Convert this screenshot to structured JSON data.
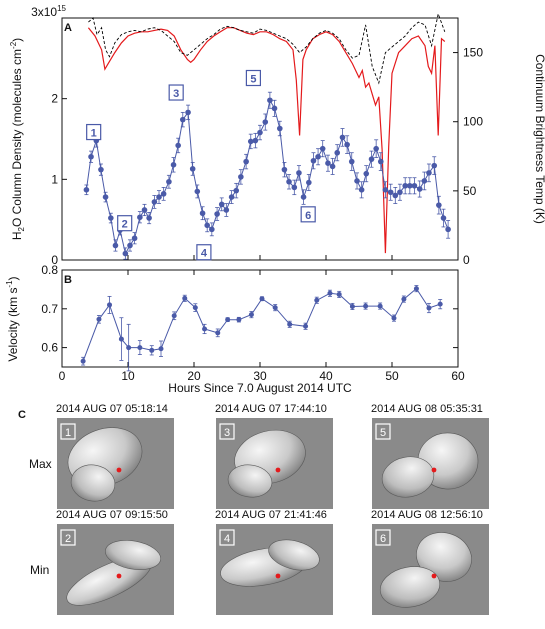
{
  "chart_data": [
    {
      "type": "line",
      "panel_label": "A",
      "xlim": [
        0,
        60
      ],
      "ylim_left": [
        0,
        3
      ],
      "left_ticks": [
        "0",
        "1",
        "2",
        "3x10"
      ],
      "left_tick_exp": "15",
      "ylabel_left": "H",
      "ylabel_left_sub": "2",
      "ylabel_left_rest": "O Column Density (molecules cm",
      "ylabel_left_sup": "-2",
      "ylabel_left_end": ")",
      "ylim_right": [
        0,
        175
      ],
      "right_ticks": [
        "0",
        "50",
        "100",
        "150"
      ],
      "ylabel_right": "Continuum Brightness Temp (K)",
      "series": [
        {
          "role": "water column density",
          "color": "#4a5aa8",
          "x": [
            3.7,
            4.4,
            5.2,
            5.9,
            6.6,
            7.4,
            8.1,
            8.8,
            9.6,
            10.3,
            11.0,
            11.8,
            12.5,
            13.2,
            14.0,
            14.7,
            15.4,
            16.2,
            16.9,
            17.6,
            18.3,
            19.1,
            19.8,
            20.5,
            21.3,
            22.0,
            22.7,
            23.5,
            24.2,
            24.9,
            25.7,
            26.4,
            27.1,
            27.9,
            28.6,
            29.3,
            30.0,
            30.8,
            31.5,
            32.2,
            33.0,
            33.7,
            34.4,
            35.2,
            35.9,
            36.6,
            37.4,
            38.1,
            38.8,
            39.5,
            40.3,
            41.0,
            41.7,
            42.5,
            43.2,
            43.9,
            44.7,
            45.4,
            46.1,
            46.9,
            47.6,
            48.3,
            49.0,
            49.8,
            50.5,
            51.2,
            52.0,
            52.7,
            53.4,
            54.2,
            54.9,
            55.6,
            56.4,
            57.1,
            57.8,
            58.5
          ],
          "y": [
            0.87,
            1.28,
            1.48,
            1.12,
            0.78,
            0.52,
            0.18,
            0.37,
            0.08,
            0.18,
            0.27,
            0.53,
            0.62,
            0.52,
            0.72,
            0.78,
            0.82,
            0.97,
            1.18,
            1.42,
            1.74,
            1.83,
            1.13,
            0.85,
            0.58,
            0.43,
            0.38,
            0.57,
            0.69,
            0.62,
            0.78,
            0.86,
            1.03,
            1.22,
            1.47,
            1.48,
            1.58,
            1.71,
            1.98,
            1.88,
            1.63,
            1.12,
            0.97,
            0.9,
            1.08,
            0.78,
            0.96,
            1.23,
            1.28,
            1.38,
            1.2,
            1.16,
            1.33,
            1.52,
            1.43,
            1.22,
            0.98,
            0.87,
            1.07,
            1.25,
            1.38,
            1.22,
            0.87,
            0.84,
            0.8,
            0.84,
            0.92,
            0.92,
            0.92,
            0.88,
            0.98,
            1.08,
            1.17,
            0.68,
            0.52,
            0.38
          ],
          "err": [
            0.06,
            0.07,
            0.08,
            0.07,
            0.06,
            0.06,
            0.07,
            0.06,
            0.07,
            0.07,
            0.07,
            0.07,
            0.07,
            0.07,
            0.08,
            0.08,
            0.08,
            0.08,
            0.09,
            0.09,
            0.09,
            0.09,
            0.08,
            0.08,
            0.08,
            0.08,
            0.08,
            0.08,
            0.08,
            0.08,
            0.08,
            0.09,
            0.09,
            0.09,
            0.09,
            0.09,
            0.09,
            0.1,
            0.1,
            0.1,
            0.09,
            0.09,
            0.09,
            0.09,
            0.09,
            0.09,
            0.1,
            0.1,
            0.1,
            0.1,
            0.1,
            0.1,
            0.1,
            0.11,
            0.11,
            0.11,
            0.1,
            0.1,
            0.1,
            0.1,
            0.11,
            0.11,
            0.1,
            0.1,
            0.1,
            0.1,
            0.1,
            0.1,
            0.1,
            0.1,
            0.11,
            0.11,
            0.11,
            0.11,
            0.11,
            0.11
          ]
        },
        {
          "role": "continuum brightness temperature",
          "color": "#e41a1c",
          "x": [
            4,
            5,
            6,
            6.5,
            7,
            8,
            9,
            10,
            11,
            12,
            13,
            14,
            15,
            16,
            17,
            18,
            19,
            19.5,
            20,
            21,
            22,
            23,
            24,
            25,
            26,
            27,
            28,
            29,
            30,
            31,
            32,
            33,
            34,
            35,
            35.5,
            36,
            36.5,
            37,
            38,
            39,
            40,
            41,
            42,
            43,
            44,
            45,
            45.5,
            46,
            46.5,
            47,
            47.5,
            48,
            48.5,
            49,
            49.5,
            50,
            51,
            52,
            53,
            54,
            55,
            55.5,
            56,
            56.5,
            57,
            57.5,
            58
          ],
          "y": [
            168,
            162,
            152,
            138,
            142,
            150,
            157,
            162,
            164,
            165,
            165,
            166,
            167,
            166,
            162,
            152,
            145,
            143,
            145,
            152,
            158,
            162,
            165,
            168,
            168,
            166,
            164,
            163,
            165,
            165,
            163,
            160,
            158,
            152,
            130,
            90,
            145,
            152,
            160,
            163,
            165,
            163,
            158,
            150,
            142,
            132,
            137,
            125,
            128,
            120,
            112,
            118,
            80,
            5,
            82,
            135,
            150,
            155,
            160,
            162,
            155,
            140,
            135,
            155,
            90,
            160,
            158
          ]
        },
        {
          "role": "continuum brightness temperature (model)",
          "color": "#000000",
          "x": [
            4,
            4.7,
            5.3,
            6,
            6.6,
            7.2,
            8,
            9,
            10,
            11,
            12,
            13,
            14,
            15,
            16,
            17,
            18,
            19,
            20,
            21,
            22,
            23,
            24,
            25,
            26,
            27,
            28,
            29,
            30,
            31,
            32,
            33,
            34,
            35,
            36,
            37,
            38,
            39,
            40,
            41,
            42,
            43,
            44,
            45,
            46,
            47,
            48,
            49,
            50,
            51,
            52,
            53,
            54,
            55,
            56,
            57,
            58
          ],
          "y": [
            172,
            175,
            163,
            168,
            152,
            147,
            157,
            163,
            165,
            166,
            165,
            167,
            168,
            166,
            162,
            158,
            150,
            148,
            152,
            156,
            160,
            163,
            167,
            169,
            168,
            166,
            165,
            164,
            167,
            166,
            164,
            162,
            160,
            156,
            150,
            154,
            160,
            164,
            166,
            164,
            160,
            152,
            146,
            148,
            170,
            140,
            128,
            150,
            154,
            158,
            162,
            168,
            172,
            170,
            155,
            178,
            165
          ]
        }
      ],
      "annotations": [
        {
          "label": "1",
          "x": 4.8,
          "y": 1.58
        },
        {
          "label": "2",
          "x": 9.5,
          "y": 0.45
        },
        {
          "label": "3",
          "x": 17.3,
          "y": 2.07
        },
        {
          "label": "4",
          "x": 21.5,
          "y": 0.09
        },
        {
          "label": "5",
          "x": 29.0,
          "y": 2.25
        },
        {
          "label": "6",
          "x": 37.3,
          "y": 0.56
        }
      ]
    },
    {
      "type": "line",
      "panel_label": "B",
      "xlim": [
        0,
        60
      ],
      "x_ticks": [
        "0",
        "10",
        "20",
        "30",
        "40",
        "50",
        "60"
      ],
      "ylim": [
        0.55,
        0.8
      ],
      "y_ticks": [
        "0.6",
        "0.7",
        "0.8"
      ],
      "xlabel": "Hours Since 7.0 August 2014 UTC",
      "ylabel": "Velocity (km s",
      "ylabel_sup": "-1",
      "ylabel_end": ")",
      "series": [
        {
          "role": "velocity",
          "color": "#4a5aa8",
          "x": [
            3.2,
            5.6,
            7.2,
            9.0,
            10.1,
            11.8,
            13.6,
            15.0,
            17.0,
            18.6,
            20.2,
            21.6,
            23.6,
            25.1,
            26.8,
            28.7,
            30.3,
            32.3,
            34.5,
            36.9,
            38.6,
            40.6,
            42.0,
            44.0,
            46.0,
            48.2,
            50.3,
            51.8,
            53.7,
            55.6,
            57.3
          ],
          "y": [
            0.565,
            0.673,
            0.71,
            0.622,
            0.6,
            0.6,
            0.593,
            0.597,
            0.682,
            0.727,
            0.703,
            0.648,
            0.638,
            0.672,
            0.672,
            0.685,
            0.726,
            0.703,
            0.66,
            0.655,
            0.722,
            0.74,
            0.737,
            0.706,
            0.707,
            0.707,
            0.676,
            0.725,
            0.752,
            0.702,
            0.712
          ],
          "err": [
            0.01,
            0.01,
            0.022,
            0.055,
            0.06,
            0.018,
            0.012,
            0.02,
            0.01,
            0.008,
            0.01,
            0.012,
            0.01,
            0.005,
            0.006,
            0.008,
            0.005,
            0.008,
            0.008,
            0.008,
            0.008,
            0.008,
            0.008,
            0.008,
            0.008,
            0.008,
            0.008,
            0.008,
            0.008,
            0.012,
            0.012
          ]
        }
      ]
    }
  ],
  "panel_c": {
    "label": "C",
    "row_labels": [
      "Max",
      "Min"
    ],
    "images": [
      {
        "num": "1",
        "timestamp": "2014 AUG 07 05:18:14"
      },
      {
        "num": "3",
        "timestamp": "2014 AUG 07 17:44:10"
      },
      {
        "num": "5",
        "timestamp": "2014 AUG 08 05:35:31"
      },
      {
        "num": "2",
        "timestamp": "2014 AUG 07 09:15:50"
      },
      {
        "num": "4",
        "timestamp": "2014 AUG 07 21:41:46"
      },
      {
        "num": "6",
        "timestamp": "2014 AUG 08 12:56:10"
      }
    ],
    "colors": {
      "background": "#8a8a8a",
      "nucleus_light": "#f2f2f2",
      "nucleus_dark": "#6e6e6e",
      "subsolar_dot": "#e41a1c"
    }
  }
}
